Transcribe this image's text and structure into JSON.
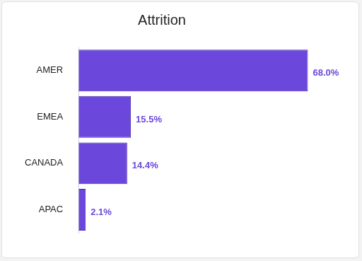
{
  "chart_data": {
    "type": "bar",
    "title": "Attrition",
    "categories": [
      "AMER",
      "EMEA",
      "CANADA",
      "APAC"
    ],
    "values": [
      68.0,
      15.5,
      14.4,
      2.1
    ],
    "value_labels": [
      "68.0%",
      "15.5%",
      "14.4%",
      "2.1%"
    ],
    "color": "#6c47dc",
    "orientation": "horizontal",
    "data_labels": true,
    "grid": false,
    "tick_labels": "y"
  }
}
